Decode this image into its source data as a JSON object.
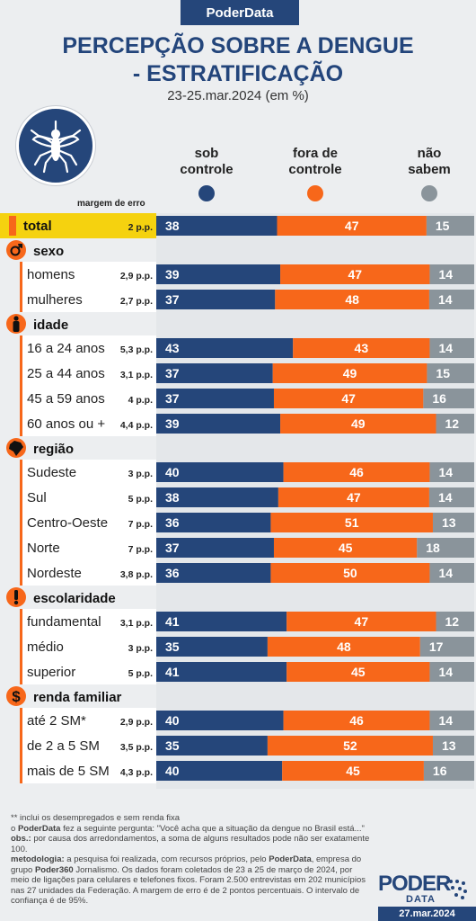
{
  "brand": "PoderData",
  "title_line1": "PERCEPÇÃO SOBRE A DENGUE",
  "title_line2": "- ESTRATIFICAÇÃO",
  "subtitle": "23-25.mar.2024 (em %)",
  "margin_header": "margem de erro",
  "colors": {
    "sob": "#25467a",
    "fora": "#f7671a",
    "nao": "#8a949b",
    "accent": "#f7671a",
    "highlight": "#f5d20f"
  },
  "columns": [
    {
      "line1": "sob",
      "line2": "controle"
    },
    {
      "line1": "fora de",
      "line2": "controle"
    },
    {
      "line1": "não",
      "line2": "sabem"
    }
  ],
  "chart_data": {
    "type": "bar",
    "stacked": true,
    "unit": "%",
    "series_names": [
      "sob controle",
      "fora de controle",
      "não sabem"
    ],
    "total": {
      "label": "total",
      "moe": "2 p.p.",
      "values": [
        38,
        47,
        15
      ]
    },
    "sections": [
      {
        "title": "sexo",
        "icon": "gender-icon",
        "rows": [
          {
            "label": "homens",
            "moe": "2,9 p.p.",
            "values": [
              39,
              47,
              14
            ]
          },
          {
            "label": "mulheres",
            "moe": "2,7 p.p.",
            "values": [
              37,
              48,
              14
            ]
          }
        ]
      },
      {
        "title": "idade",
        "icon": "person-icon",
        "rows": [
          {
            "label": "16 a 24 anos",
            "moe": "5,3 p.p.",
            "values": [
              43,
              43,
              14
            ]
          },
          {
            "label": "25 a 44 anos",
            "moe": "3,1 p.p.",
            "values": [
              37,
              49,
              15
            ]
          },
          {
            "label": "45 a 59 anos",
            "moe": "4 p.p.",
            "values": [
              37,
              47,
              16
            ]
          },
          {
            "label": "60 anos ou +",
            "moe": "4,4 p.p.",
            "values": [
              39,
              49,
              12
            ]
          }
        ]
      },
      {
        "title": "região",
        "icon": "brazil-map-icon",
        "rows": [
          {
            "label": "Sudeste",
            "moe": "3 p.p.",
            "values": [
              40,
              46,
              14
            ]
          },
          {
            "label": "Sul",
            "moe": "5 p.p.",
            "values": [
              38,
              47,
              14
            ]
          },
          {
            "label": "Centro-Oeste",
            "moe": "7 p.p.",
            "values": [
              36,
              51,
              13
            ]
          },
          {
            "label": "Norte",
            "moe": "7 p.p.",
            "values": [
              37,
              45,
              18
            ]
          },
          {
            "label": "Nordeste",
            "moe": "3,8 p.p.",
            "values": [
              36,
              50,
              14
            ]
          }
        ]
      },
      {
        "title": "escolaridade",
        "icon": "exclamation-icon",
        "rows": [
          {
            "label": "fundamental",
            "moe": "3,1 p.p.",
            "values": [
              41,
              47,
              12
            ]
          },
          {
            "label": "médio",
            "moe": "3 p.p.",
            "values": [
              35,
              48,
              17
            ]
          },
          {
            "label": "superior",
            "moe": "5 p.p.",
            "values": [
              41,
              45,
              14
            ]
          }
        ]
      },
      {
        "title": "renda familiar",
        "icon": "dollar-icon",
        "rows": [
          {
            "label": "até 2 SM*",
            "moe": "2,9 p.p.",
            "values": [
              40,
              46,
              14
            ]
          },
          {
            "label": "de 2 a 5 SM",
            "moe": "3,5 p.p.",
            "values": [
              35,
              52,
              13
            ]
          },
          {
            "label": "mais de 5 SM",
            "moe": "4,3 p.p.",
            "values": [
              40,
              45,
              16
            ]
          }
        ]
      }
    ]
  },
  "notes": {
    "footnote": "** inclui os desempregados e sem renda fixa",
    "question_prefix": "o ",
    "question_brand": "PoderData",
    "question_text": " fez a seguinte pergunta: \"Você acha que a situação da dengue no Brasil está...\"",
    "obs_label": "obs.:",
    "obs_text": " por causa dos arredondamentos, a soma de alguns resultados pode não ser exatamente 100.",
    "method_label": "metodologia:",
    "method_text1": " a pesquisa foi realizada, com recursos próprios, pelo ",
    "method_brand": "PoderData",
    "method_text2": ", empresa do grupo ",
    "method_group": "Poder360",
    "method_text3": " Jornalismo. Os dados foram coletados de 23 a 25 de março de 2024, por meio de ligações para celulares e telefones fixos. Foram 2.500 entrevistas em 202 municípios nas 27 unidades da Federação. A margem de erro é de 2 pontos percentuais. O intervalo de confiança é de 95%."
  },
  "logo": {
    "main": "PODER",
    "sub": "DATA"
  },
  "date": "27.mar.2024"
}
